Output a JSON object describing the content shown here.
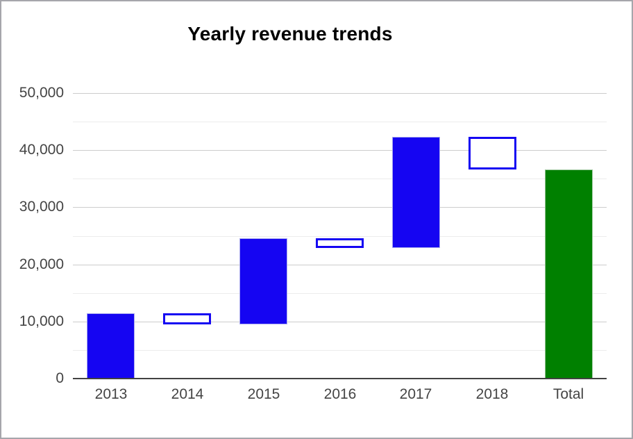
{
  "window": {
    "border_color": "#a6a6ab",
    "background": "#ffffff"
  },
  "chart_data": {
    "type": "waterfall",
    "title": "Yearly revenue trends",
    "legend": "none",
    "grid": "on",
    "categories": [
      "2013",
      "2014",
      "2015",
      "2016",
      "2017",
      "2018",
      "Total"
    ],
    "bars": [
      {
        "label": "2013",
        "start": 0,
        "end": 11500,
        "kind": "rise"
      },
      {
        "label": "2014",
        "start": 11500,
        "end": 9500,
        "kind": "fall"
      },
      {
        "label": "2015",
        "start": 9500,
        "end": 24600,
        "kind": "rise"
      },
      {
        "label": "2016",
        "start": 24600,
        "end": 22900,
        "kind": "fall"
      },
      {
        "label": "2017",
        "start": 22900,
        "end": 42400,
        "kind": "rise"
      },
      {
        "label": "2018",
        "start": 42400,
        "end": 36600,
        "kind": "fall"
      },
      {
        "label": "Total",
        "start": 0,
        "end": 36600,
        "kind": "total"
      }
    ],
    "xlabel": "",
    "ylabel": "",
    "y_axis": {
      "min": 0,
      "max": 50000,
      "major_step": 10000,
      "minor_step": 5000,
      "tick_labels": [
        "0",
        "10,000",
        "20,000",
        "30,000",
        "40,000",
        "50,000"
      ]
    },
    "colors": {
      "rise_fill": "#1505f2",
      "rise_border": "#a9a9ef",
      "fall_fill": "#ffffff",
      "fall_border": "#1505f2",
      "total_fill": "#008000",
      "total_border": "#9cc69c",
      "gridline_major": "#cccccc",
      "gridline_minor": "#ececec",
      "baseline": "#424242",
      "axis_label": "#444444",
      "title_color": "#000000"
    }
  }
}
